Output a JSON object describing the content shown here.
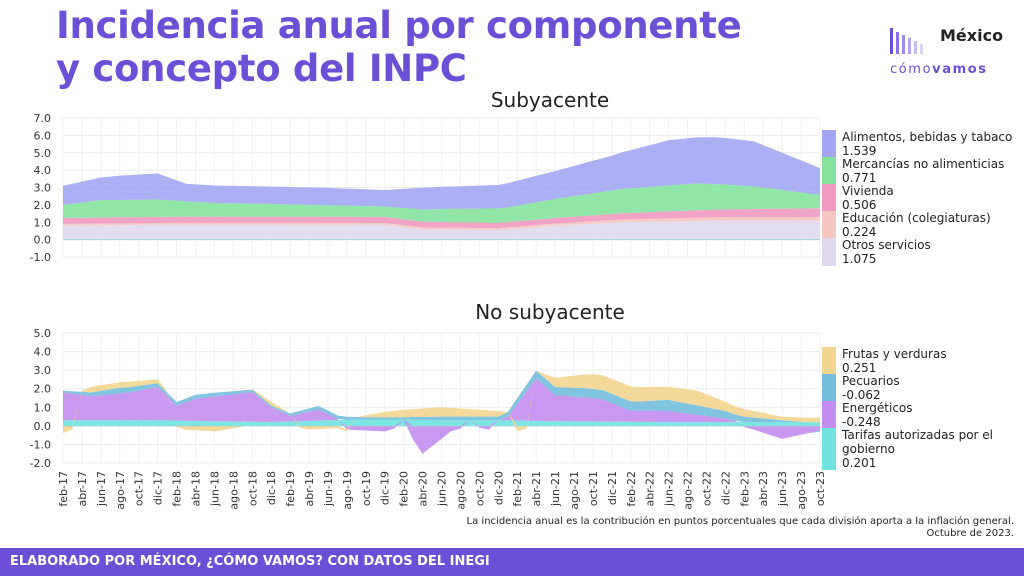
{
  "title": "Incidencia anual por componente y concepto del INPC",
  "logo": {
    "top": "México",
    "sub_light": "cómo",
    "sub_bold": "vamos",
    "color": "#6b4fd6"
  },
  "note": {
    "line1": "La incidencia anual es la contribución en puntos porcentuales que cada división aporta a la inflación general.",
    "line2": "Octubre de 2023."
  },
  "footer": "ELABORADO POR MÉXICO, ¿CÓMO VAMOS? CON DATOS DEL INEGI",
  "chart_data": [
    {
      "type": "area",
      "stacked": true,
      "title": "Subyacente",
      "ylim": [
        -1.0,
        7.0
      ],
      "yticks": [
        -1.0,
        0.0,
        1.0,
        2.0,
        3.0,
        4.0,
        5.0,
        6.0,
        7.0
      ],
      "x_start": "2017-02",
      "x_end": "2023-10",
      "grid": true,
      "legend": "right",
      "series": [
        {
          "name": "Otros servicios",
          "value_label": "1.075",
          "color": "#e0d9ee",
          "knots": [
            [
              "2017-02",
              0.8
            ],
            [
              "2017-12",
              0.85
            ],
            [
              "2018-12",
              0.85
            ],
            [
              "2019-12",
              0.85
            ],
            [
              "2020-04",
              0.6
            ],
            [
              "2020-12",
              0.55
            ],
            [
              "2021-06",
              0.8
            ],
            [
              "2022-01",
              1.0
            ],
            [
              "2022-12",
              1.1
            ],
            [
              "2023-10",
              1.075
            ]
          ]
        },
        {
          "name": "Educación (colegiaturas)",
          "value_label": "0.224",
          "color": "#f6c7c0",
          "knots": [
            [
              "2017-02",
              0.1
            ],
            [
              "2018-12",
              0.12
            ],
            [
              "2020-06",
              0.1
            ],
            [
              "2021-06",
              0.12
            ],
            [
              "2022-06",
              0.18
            ],
            [
              "2023-10",
              0.224
            ]
          ]
        },
        {
          "name": "Vivienda",
          "value_label": "0.506",
          "color": "#f09ac2",
          "knots": [
            [
              "2017-02",
              0.35
            ],
            [
              "2018-12",
              0.35
            ],
            [
              "2019-12",
              0.35
            ],
            [
              "2020-12",
              0.3
            ],
            [
              "2021-12",
              0.35
            ],
            [
              "2022-12",
              0.45
            ],
            [
              "2023-10",
              0.506
            ]
          ]
        },
        {
          "name": "Mercancías no alimenticias",
          "value_label": "0.771",
          "color": "#86e39e",
          "knots": [
            [
              "2017-02",
              0.75
            ],
            [
              "2017-06",
              1.0
            ],
            [
              "2017-12",
              1.0
            ],
            [
              "2018-06",
              0.8
            ],
            [
              "2019-12",
              0.6
            ],
            [
              "2020-06",
              0.75
            ],
            [
              "2021-01",
              0.85
            ],
            [
              "2021-06",
              1.1
            ],
            [
              "2022-01",
              1.4
            ],
            [
              "2022-09",
              1.55
            ],
            [
              "2023-03",
              1.3
            ],
            [
              "2023-10",
              0.771
            ]
          ]
        },
        {
          "name": "Alimentos, bebidas y tabaco",
          "value_label": "1.539",
          "color": "#a2a6f2",
          "knots": [
            [
              "2017-02",
              1.1
            ],
            [
              "2017-08",
              1.4
            ],
            [
              "2017-12",
              1.5
            ],
            [
              "2018-03",
              1.0
            ],
            [
              "2018-12",
              1.0
            ],
            [
              "2019-06",
              1.0
            ],
            [
              "2019-12",
              0.95
            ],
            [
              "2020-04",
              1.25
            ],
            [
              "2020-12",
              1.35
            ],
            [
              "2021-06",
              1.6
            ],
            [
              "2021-12",
              2.0
            ],
            [
              "2022-06",
              2.6
            ],
            [
              "2022-11",
              2.7
            ],
            [
              "2023-03",
              2.6
            ],
            [
              "2023-10",
              1.539
            ]
          ]
        }
      ]
    },
    {
      "type": "area",
      "stacked": true,
      "title": "No subyacente",
      "ylim": [
        -2.0,
        5.0
      ],
      "yticks": [
        -2.0,
        -1.0,
        0.0,
        1.0,
        2.0,
        3.0,
        4.0,
        5.0
      ],
      "x_start": "2017-02",
      "x_end": "2023-10",
      "x_tick_labels": [
        "feb-17",
        "abr-17",
        "jun-17",
        "ago-17",
        "oct-17",
        "dic-17",
        "feb-18",
        "abr-18",
        "jun-18",
        "ago-18",
        "oct-18",
        "dic-18",
        "feb-19",
        "abr-19",
        "jun-19",
        "ago-19",
        "oct-19",
        "dic-19",
        "feb-20",
        "abr-20",
        "jun-20",
        "ago-20",
        "oct-20",
        "dic-20",
        "feb-21",
        "abr-21",
        "jun-21",
        "ago-21",
        "oct-21",
        "dic-21",
        "feb-22",
        "abr-22",
        "jun-22",
        "ago-22",
        "oct-22",
        "dic-22",
        "feb-23",
        "abr-23",
        "jun-23",
        "ago-23",
        "oct-23"
      ],
      "grid": true,
      "legend": "right",
      "series": [
        {
          "name": "Tarifas autorizadas por el gobierno",
          "value_label": "0.201",
          "color": "#6ee3df",
          "knots": [
            [
              "2017-02",
              0.3
            ],
            [
              "2017-12",
              0.3
            ],
            [
              "2018-12",
              0.2
            ],
            [
              "2019-06",
              0.3
            ],
            [
              "2019-12",
              0.35
            ],
            [
              "2020-06",
              0.3
            ],
            [
              "2020-12",
              0.3
            ],
            [
              "2021-06",
              0.25
            ],
            [
              "2022-06",
              0.2
            ],
            [
              "2023-10",
              0.201
            ]
          ]
        },
        {
          "name": "Energéticos",
          "value_label": "-0.248",
          "color": "#c38ef0",
          "knots": [
            [
              "2017-02",
              1.5
            ],
            [
              "2017-05",
              1.3
            ],
            [
              "2017-09",
              1.5
            ],
            [
              "2017-12",
              1.8
            ],
            [
              "2018-02",
              0.8
            ],
            [
              "2018-04",
              1.2
            ],
            [
              "2018-10",
              1.6
            ],
            [
              "2018-12",
              0.8
            ],
            [
              "2019-02",
              0.3
            ],
            [
              "2019-05",
              0.6
            ],
            [
              "2019-08",
              -0.2
            ],
            [
              "2019-12",
              -0.3
            ],
            [
              "2020-02",
              0.0
            ],
            [
              "2020-04",
              -1.5
            ],
            [
              "2020-07",
              -0.3
            ],
            [
              "2020-09",
              0.0
            ],
            [
              "2020-11",
              -0.2
            ],
            [
              "2021-01",
              0.2
            ],
            [
              "2021-04",
              2.3
            ],
            [
              "2021-06",
              1.4
            ],
            [
              "2021-09",
              1.3
            ],
            [
              "2021-11",
              1.2
            ],
            [
              "2022-02",
              0.6
            ],
            [
              "2022-06",
              0.6
            ],
            [
              "2022-09",
              0.4
            ],
            [
              "2022-12",
              0.2
            ],
            [
              "2023-03",
              -0.2
            ],
            [
              "2023-06",
              -0.7
            ],
            [
              "2023-10",
              -0.248
            ]
          ]
        },
        {
          "name": "Pecuarios",
          "value_label": "-0.062",
          "color": "#72bedc",
          "knots": [
            [
              "2017-02",
              0.1
            ],
            [
              "2017-08",
              0.3
            ],
            [
              "2017-12",
              0.2
            ],
            [
              "2018-06",
              0.2
            ],
            [
              "2018-12",
              0.1
            ],
            [
              "2019-06",
              0.2
            ],
            [
              "2019-12",
              0.1
            ],
            [
              "2020-06",
              0.2
            ],
            [
              "2020-12",
              0.2
            ],
            [
              "2021-04",
              0.4
            ],
            [
              "2021-09",
              0.5
            ],
            [
              "2022-03",
              0.5
            ],
            [
              "2022-06",
              0.6
            ],
            [
              "2022-12",
              0.4
            ],
            [
              "2023-06",
              0.1
            ],
            [
              "2023-10",
              -0.062
            ]
          ]
        },
        {
          "name": "Frutas y verduras",
          "value_label": "0.251",
          "color": "#f2d58f",
          "knots": [
            [
              "2017-02",
              -0.4
            ],
            [
              "2017-05",
              0.3
            ],
            [
              "2017-09",
              0.3
            ],
            [
              "2017-12",
              0.2
            ],
            [
              "2018-03",
              -0.2
            ],
            [
              "2018-06",
              -0.3
            ],
            [
              "2018-12",
              0.2
            ],
            [
              "2019-04",
              -0.2
            ],
            [
              "2019-08",
              -0.1
            ],
            [
              "2019-12",
              0.3
            ],
            [
              "2020-02",
              0.4
            ],
            [
              "2020-06",
              0.5
            ],
            [
              "2020-12",
              0.3
            ],
            [
              "2021-02",
              -0.3
            ],
            [
              "2021-04",
              0.0
            ],
            [
              "2021-06",
              0.5
            ],
            [
              "2021-10",
              0.8
            ],
            [
              "2022-02",
              0.8
            ],
            [
              "2022-06",
              0.7
            ],
            [
              "2022-09",
              0.8
            ],
            [
              "2022-12",
              0.5
            ],
            [
              "2023-06",
              0.2
            ],
            [
              "2023-10",
              0.251
            ]
          ]
        }
      ]
    }
  ]
}
